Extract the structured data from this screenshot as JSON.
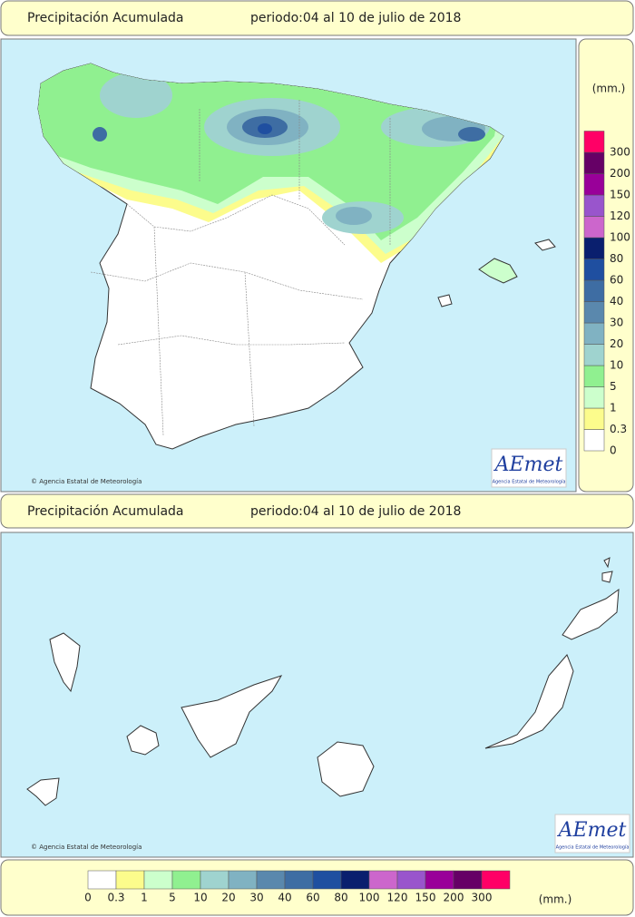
{
  "panels": [
    {
      "header": {
        "title": "Precipitación Acumulada",
        "period": "periodo:04 al 10 de julio de 2018"
      },
      "credit": "© Agencia Estatal de Meteorología",
      "logo": "AEmet",
      "logo_subtitle": "Agencia Estatal de Meteorología"
    },
    {
      "header": {
        "title": "Precipitación Acumulada",
        "period": "periodo:04 al 10 de julio de 2018"
      },
      "credit": "© Agencia Estatal de Meteorología",
      "logo": "AEmet",
      "logo_subtitle": "Agencia Estatal de Meteorología"
    }
  ],
  "legend": {
    "unit": "(mm.)",
    "items": [
      {
        "value": 0,
        "color": "#ffffff"
      },
      {
        "value": 0.3,
        "color": "#fcfc8c"
      },
      {
        "value": 1,
        "color": "#ccffcc"
      },
      {
        "value": 5,
        "color": "#90f090"
      },
      {
        "value": 10,
        "color": "#9fd3cf"
      },
      {
        "value": 20,
        "color": "#80b2c2"
      },
      {
        "value": 30,
        "color": "#5a88ad"
      },
      {
        "value": 40,
        "color": "#3e6da3"
      },
      {
        "value": 60,
        "color": "#1f4fa0"
      },
      {
        "value": 80,
        "color": "#0a1f6e"
      },
      {
        "value": 100,
        "color": "#cc66cc"
      },
      {
        "value": 120,
        "color": "#9955cc"
      },
      {
        "value": 150,
        "color": "#990099"
      },
      {
        "value": 200,
        "color": "#660066"
      },
      {
        "value": 300,
        "color": "#ff0066"
      }
    ]
  }
}
